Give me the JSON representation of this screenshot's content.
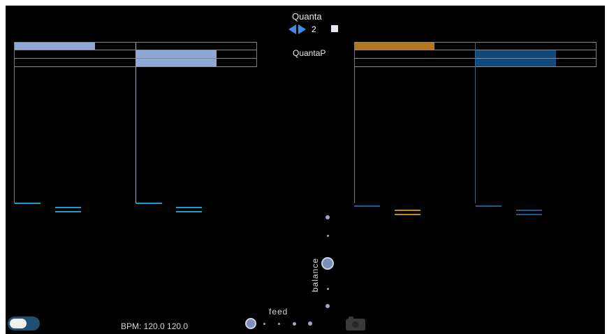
{
  "header": {
    "title": "Quanta",
    "stepper_value": "2",
    "subtitle": "QuantaP"
  },
  "footer": {
    "bpm_label": "BPM: 120.0 120.0",
    "feed_label": "feed",
    "balance_label": "balance"
  },
  "colors": {
    "background": "#000000",
    "left_bar": "#8ea9d8",
    "orange_bar": "#b8761a",
    "blue_bar": "#0f4a7a",
    "cyan_dash": "#1c9ad0",
    "orange_dash": "#c8862a",
    "accent_arrow": "#3b8ee8"
  },
  "icons": {
    "stepper_left": "triangle-left-icon",
    "stepper_right": "triangle-right-icon",
    "stop": "square-icon",
    "camera": "camera-icon"
  }
}
